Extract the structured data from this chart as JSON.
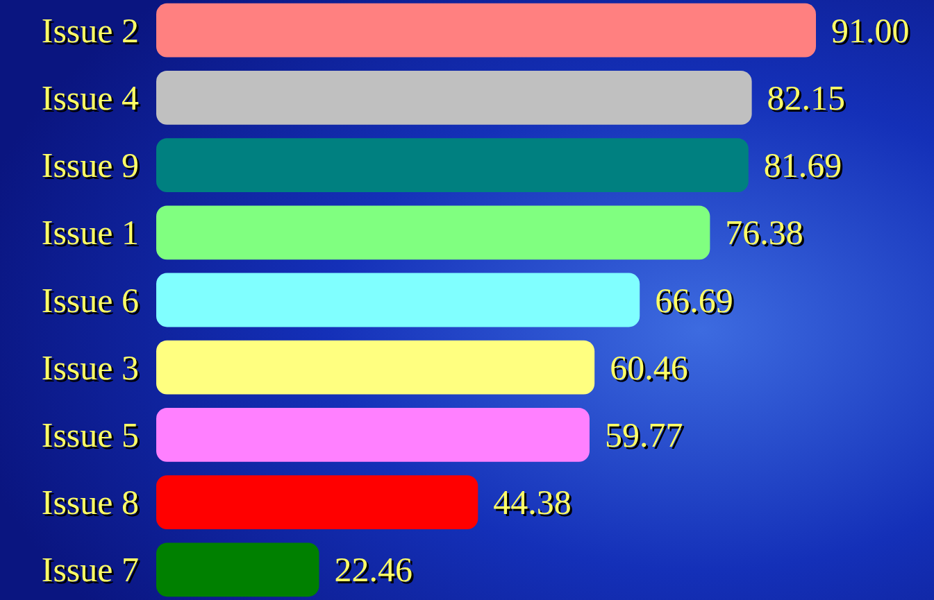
{
  "chart_data": {
    "type": "bar",
    "orientation": "horizontal",
    "categories": [
      "Issue 2",
      "Issue 4",
      "Issue 9",
      "Issue 1",
      "Issue 6",
      "Issue 3",
      "Issue 5",
      "Issue 8",
      "Issue 7"
    ],
    "values": [
      91.0,
      82.15,
      81.69,
      76.38,
      66.69,
      60.46,
      59.77,
      44.38,
      22.46
    ],
    "colors": [
      "#ff8080",
      "#c0c0c0",
      "#008080",
      "#80ff80",
      "#80ffff",
      "#ffff80",
      "#ff80ff",
      "#ff0000",
      "#008000"
    ],
    "value_labels": [
      "91.00",
      "82.15",
      "81.69",
      "76.38",
      "66.69",
      "60.46",
      "59.77",
      "44.38",
      "22.46"
    ]
  }
}
